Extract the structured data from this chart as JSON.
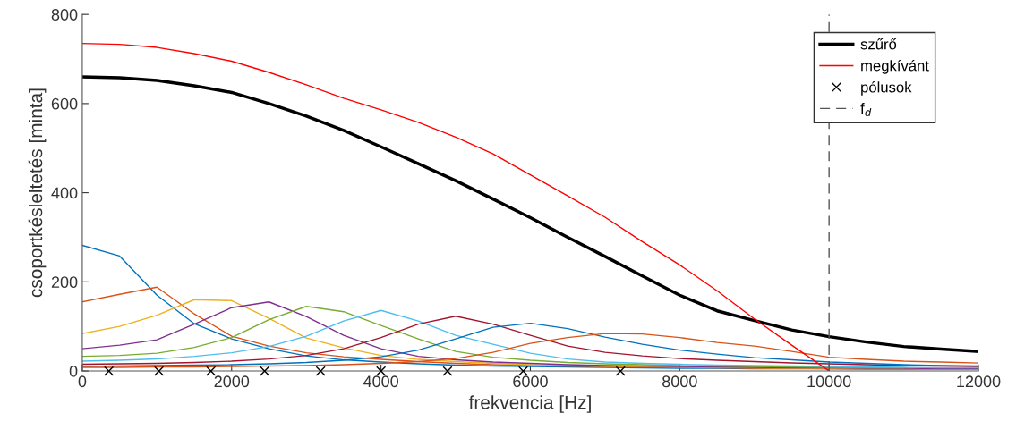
{
  "chart_data": {
    "type": "line",
    "xlabel": "frekvencia [Hz]",
    "ylabel": "csoportkésleltetés [minta]",
    "x": [
      0,
      500,
      1000,
      1500,
      2000,
      2500,
      3000,
      3500,
      4000,
      4500,
      5000,
      5500,
      6000,
      6500,
      7000,
      7500,
      8000,
      8500,
      9000,
      9500,
      10000,
      10500,
      11000,
      11500,
      12000
    ],
    "xlim": [
      0,
      12000
    ],
    "xticks": [
      0,
      2000,
      4000,
      6000,
      8000,
      10000,
      12000
    ],
    "ylim": [
      0,
      800
    ],
    "yticks": [
      0,
      200,
      400,
      600,
      800
    ],
    "grid": false,
    "legend": "top right",
    "series": [
      {
        "color": "#0072bd",
        "values": [
          282,
          258,
          170,
          106,
          72,
          50,
          34,
          25,
          20,
          16,
          13,
          11,
          10,
          9,
          8,
          7,
          6,
          6,
          5,
          5,
          5,
          4,
          4,
          4,
          4
        ]
      },
      {
        "color": "#d95319",
        "values": [
          155,
          172,
          188,
          128,
          78,
          56,
          41,
          32,
          26,
          21,
          17,
          14,
          12,
          11,
          10,
          9,
          8,
          7,
          6,
          6,
          5,
          5,
          4,
          4,
          4
        ]
      },
      {
        "color": "#edb120",
        "values": [
          84,
          100,
          125,
          160,
          158,
          118,
          74,
          52,
          35,
          26,
          21,
          17,
          14,
          12,
          11,
          10,
          9,
          8,
          7,
          6,
          6,
          5,
          5,
          4,
          4
        ]
      },
      {
        "color": "#7e2f8e",
        "values": [
          50,
          58,
          70,
          105,
          142,
          155,
          122,
          80,
          50,
          33,
          25,
          20,
          17,
          14,
          12,
          11,
          10,
          9,
          8,
          7,
          7,
          6,
          6,
          5,
          5
        ]
      },
      {
        "color": "#77ac30",
        "values": [
          33,
          35,
          40,
          53,
          75,
          115,
          145,
          133,
          102,
          72,
          44,
          31,
          24,
          19,
          16,
          14,
          12,
          11,
          10,
          9,
          8,
          7,
          7,
          null,
          null
        ]
      },
      {
        "color": "#4dbeee",
        "values": [
          22,
          24,
          27,
          33,
          41,
          55,
          78,
          112,
          136,
          112,
          80,
          60,
          40,
          27,
          20,
          17,
          15,
          13,
          12,
          11,
          10,
          9,
          8,
          7,
          7
        ]
      },
      {
        "color": "#a2142f",
        "values": [
          15,
          16,
          17,
          19,
          22,
          27,
          35,
          50,
          75,
          105,
          123,
          105,
          80,
          56,
          42,
          34,
          28,
          24,
          21,
          18,
          16,
          14,
          12,
          11,
          10
        ]
      },
      {
        "color": "#0072bd",
        "values": [
          10,
          11,
          12,
          13,
          14,
          16,
          19,
          24,
          32,
          47,
          72,
          98,
          107,
          95,
          76,
          60,
          47,
          38,
          30,
          25,
          20,
          17,
          14,
          12,
          11
        ]
      },
      {
        "color": "#d95319",
        "values": [
          8,
          8,
          9,
          9,
          10,
          11,
          12,
          14,
          17,
          21,
          28,
          42,
          62,
          75,
          84,
          83,
          75,
          64,
          56,
          44,
          31,
          26,
          22,
          20,
          18
        ]
      },
      {
        "name": "szűrő",
        "color": "#000000",
        "values": [
          660,
          658,
          652,
          640,
          625,
          600,
          572,
          540,
          503,
          465,
          427,
          386,
          344,
          300,
          257,
          213,
          170,
          135,
          113,
          92,
          77,
          65,
          55,
          49,
          44
        ]
      },
      {
        "name": "megkívánt",
        "color": "#ff0000",
        "values": [
          735,
          733,
          726,
          712,
          695,
          670,
          642,
          612,
          586,
          558,
          525,
          487,
          440,
          393,
          345,
          290,
          238,
          180,
          117,
          58,
          0,
          null,
          null,
          null,
          null
        ]
      },
      {
        "name": "pólusok",
        "type": "scatter",
        "marker": "cross",
        "color": "#000000",
        "x": [
          356,
          1027,
          1723,
          2442,
          3192,
          4000,
          4891,
          5904,
          7208
        ],
        "values": [
          0,
          0,
          0,
          0,
          0,
          0,
          0,
          0,
          0
        ]
      }
    ],
    "ref_lines": [
      {
        "axis": "x",
        "value": 10000,
        "label": "f$_{d}$",
        "color": "#555555",
        "line_style": "dashed"
      }
    ]
  }
}
